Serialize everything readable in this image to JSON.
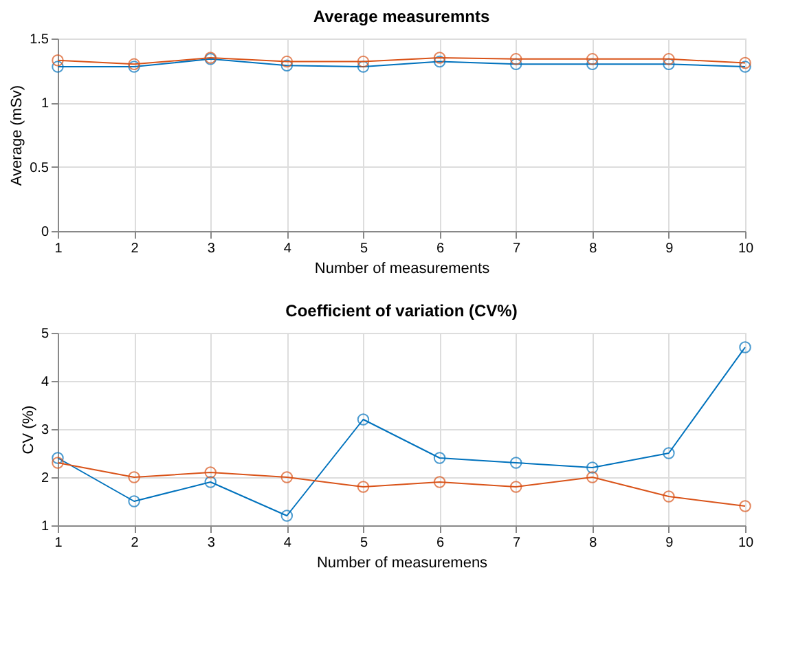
{
  "chart_data": [
    {
      "type": "line",
      "title": "Average measuremnts",
      "xlabel": "Number of measurements",
      "ylabel": "Average (mSv)",
      "x": [
        1,
        2,
        3,
        4,
        5,
        6,
        7,
        8,
        9,
        10
      ],
      "series": [
        {
          "color": "#0072bd",
          "values": [
            1.28,
            1.28,
            1.34,
            1.29,
            1.28,
            1.32,
            1.3,
            1.3,
            1.3,
            1.28
          ]
        },
        {
          "color": "#d95319",
          "values": [
            1.33,
            1.3,
            1.35,
            1.32,
            1.32,
            1.35,
            1.34,
            1.34,
            1.34,
            1.31
          ]
        }
      ],
      "xlim": [
        1,
        10
      ],
      "xticks": [
        1,
        2,
        3,
        4,
        5,
        6,
        7,
        8,
        9,
        10
      ],
      "ylim": [
        0,
        1.5
      ],
      "yticks": [
        0,
        0.5,
        1,
        1.5
      ],
      "grid": true,
      "marker": "circle",
      "line_style": "solid"
    },
    {
      "type": "line",
      "title": "Coefficient of variation  (CV%)",
      "xlabel": "Number of measuremens",
      "ylabel": "CV (%)",
      "x": [
        1,
        2,
        3,
        4,
        5,
        6,
        7,
        8,
        9,
        10
      ],
      "series": [
        {
          "color": "#0072bd",
          "values": [
            2.4,
            1.5,
            1.9,
            1.2,
            3.2,
            2.4,
            2.3,
            2.2,
            2.5,
            4.7
          ]
        },
        {
          "color": "#d95319",
          "values": [
            2.3,
            2.0,
            2.1,
            2.0,
            1.8,
            1.9,
            1.8,
            2.0,
            1.6,
            1.4
          ]
        }
      ],
      "xlim": [
        1,
        10
      ],
      "xticks": [
        1,
        2,
        3,
        4,
        5,
        6,
        7,
        8,
        9,
        10
      ],
      "ylim": [
        1,
        5
      ],
      "yticks": [
        1,
        2,
        3,
        4,
        5
      ],
      "grid": true,
      "marker": "circle",
      "line_style": "solid"
    }
  ]
}
